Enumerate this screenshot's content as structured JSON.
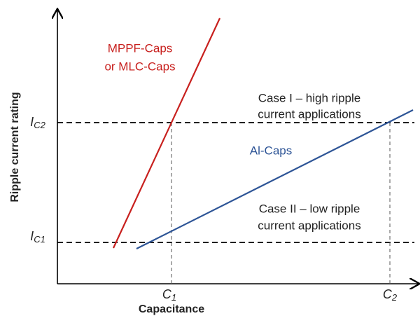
{
  "axes": {
    "x_label": "Capacitance",
    "y_label": "Ripple current rating"
  },
  "y_ticks": [
    {
      "main": "I",
      "sub": "C2"
    },
    {
      "main": "I",
      "sub": "C1"
    }
  ],
  "x_ticks": [
    {
      "main": "C",
      "sub": "1"
    },
    {
      "main": "C",
      "sub": "2"
    }
  ],
  "lines": [
    {
      "label_lines": [
        "MPPF-Caps",
        "or MLC-Caps"
      ],
      "color": "#c8201e"
    },
    {
      "label_lines": [
        "Al-Caps"
      ],
      "color": "#2d5496"
    }
  ],
  "annotations": [
    {
      "lines": [
        "Case I – high ripple",
        "current applications"
      ]
    },
    {
      "lines": [
        "Case II – low ripple",
        "current applications"
      ]
    }
  ]
}
